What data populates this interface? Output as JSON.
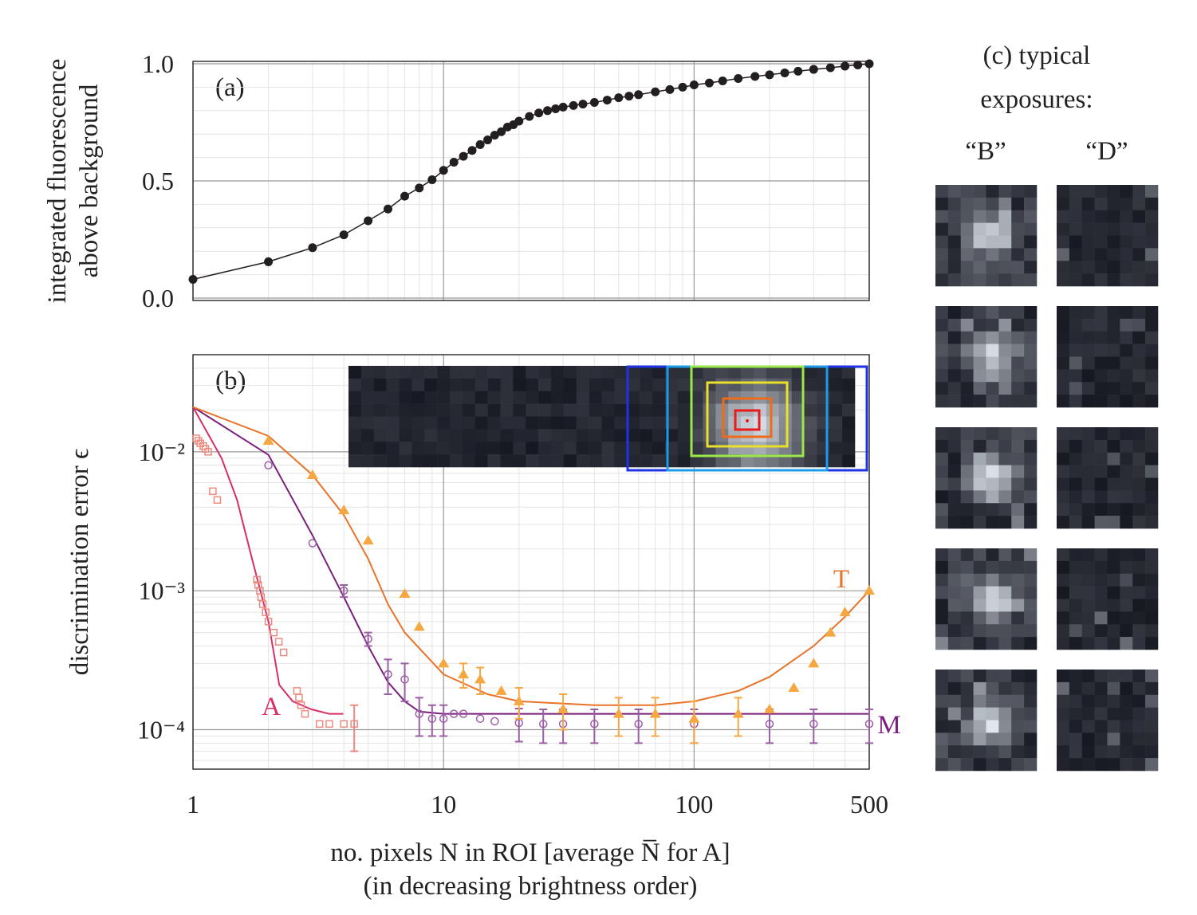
{
  "chart_data": [
    {
      "type": "line",
      "panel_label": "(a)",
      "ylabel": [
        "integrated fluorescence",
        "above background"
      ],
      "x": [
        1,
        2,
        3,
        4,
        5,
        6,
        7,
        8,
        9,
        10,
        11,
        12,
        13,
        14,
        15,
        16,
        17,
        18,
        19,
        20,
        22,
        24,
        26,
        28,
        30,
        33,
        36,
        40,
        45,
        50,
        55,
        60,
        70,
        80,
        90,
        100,
        115,
        130,
        150,
        175,
        200,
        230,
        260,
        300,
        350,
        400,
        450,
        500
      ],
      "values": [
        0.08,
        0.155,
        0.215,
        0.27,
        0.33,
        0.38,
        0.435,
        0.47,
        0.505,
        0.545,
        0.58,
        0.605,
        0.63,
        0.655,
        0.675,
        0.695,
        0.71,
        0.73,
        0.74,
        0.755,
        0.775,
        0.79,
        0.8,
        0.808,
        0.815,
        0.822,
        0.828,
        0.835,
        0.845,
        0.855,
        0.862,
        0.868,
        0.88,
        0.89,
        0.9,
        0.91,
        0.918,
        0.927,
        0.937,
        0.946,
        0.953,
        0.961,
        0.968,
        0.976,
        0.983,
        0.99,
        0.995,
        1.0
      ],
      "color": "#231f20",
      "xscale": "log",
      "xlim": [
        1,
        500
      ],
      "xticks": [
        1,
        10,
        100,
        500
      ],
      "ylim": [
        0,
        1
      ],
      "yticks": [
        {
          "value": 0,
          "label": "0.0"
        },
        {
          "value": 0.5,
          "label": "0.5"
        },
        {
          "value": 1,
          "label": "1.0"
        }
      ],
      "grid": true
    },
    {
      "type": "line",
      "panel_label": "(b)",
      "ylabel": "discrimination error ϵ",
      "xlabel": [
        "no. pixels N in ROI [average N̅ for A]",
        "(in decreasing brightness order)"
      ],
      "xscale": "log",
      "yscale": "log",
      "xlim": [
        1,
        500
      ],
      "xticks": [
        1,
        10,
        100,
        500
      ],
      "ylim": [
        5.2e-05,
        0.05
      ],
      "yticks": [
        {
          "value": 0.0001,
          "label": "10⁻⁴"
        },
        {
          "value": 0.001,
          "label": "10⁻³"
        },
        {
          "value": 0.01,
          "label": "10⁻²"
        }
      ],
      "grid": true,
      "series": [
        {
          "name": "A",
          "color": "#d62f6a",
          "marker_color": "#ec8a80",
          "marker": "square",
          "line_x": [
            1,
            1.3,
            1.5,
            1.72,
            2.0,
            2.21,
            2.5,
            2.97,
            3.5,
            3.98
          ],
          "line_values": [
            0.021,
            0.009,
            0.0045,
            0.0017,
            0.0006,
            0.00021,
            0.00016,
            0.00014,
            0.00013,
            0.00013
          ],
          "x": [
            1.03,
            1.05,
            1.07,
            1.1,
            1.12,
            1.15,
            1.2,
            1.25,
            1.8,
            1.82,
            1.85,
            1.87,
            1.9,
            1.95,
            2.0,
            2.1,
            2.2,
            2.3,
            2.6,
            2.65,
            2.7,
            2.8,
            3.2,
            3.5,
            4.0,
            4.4
          ],
          "values": [
            0.0125,
            0.012,
            0.0115,
            0.011,
            0.0105,
            0.01,
            0.0052,
            0.0045,
            0.0012,
            0.0011,
            0.001,
            0.0009,
            0.0008,
            0.0007,
            0.0006,
            0.0005,
            0.00043,
            0.00036,
            0.00019,
            0.00017,
            0.00015,
            0.00013,
            0.00011,
            0.00011,
            0.00011,
            0.00011
          ],
          "errors": [
            null,
            null,
            null,
            null,
            null,
            null,
            null,
            null,
            null,
            null,
            null,
            null,
            null,
            null,
            null,
            null,
            null,
            null,
            null,
            null,
            null,
            null,
            null,
            null,
            null,
            4e-05
          ]
        },
        {
          "name": "M",
          "color": "#7b1f7f",
          "marker_color": "#9b5fa5",
          "marker": "circle",
          "line_x": [
            1,
            2,
            3,
            4,
            5,
            6,
            7,
            8,
            10,
            20,
            100,
            500
          ],
          "line_values": [
            0.021,
            0.0095,
            0.0025,
            0.0009,
            0.0004,
            0.00022,
            0.00016,
            0.000135,
            0.00013,
            0.00013,
            0.00013,
            0.00013
          ],
          "x": [
            2,
            3,
            4,
            5,
            6,
            7,
            8,
            9,
            10,
            11,
            12,
            14,
            16,
            20,
            25,
            30,
            40,
            60,
            100,
            200,
            300,
            500
          ],
          "values": [
            0.008,
            0.0022,
            0.001,
            0.00045,
            0.00025,
            0.00023,
            0.00013,
            0.00012,
            0.00012,
            0.00013,
            0.00013,
            0.00012,
            0.000115,
            0.000112,
            0.00011,
            0.00011,
            0.00011,
            0.00011,
            0.00011,
            0.00011,
            0.00011,
            0.00011
          ],
          "errors": [
            null,
            null,
            0.0001,
            5e-05,
            7e-05,
            7e-05,
            4e-05,
            3e-05,
            3e-05,
            null,
            null,
            null,
            null,
            3e-05,
            3e-05,
            3e-05,
            3e-05,
            3e-05,
            3e-05,
            3e-05,
            3e-05,
            3e-05
          ]
        },
        {
          "name": "T",
          "color": "#e8732a",
          "marker_color": "#f5a742",
          "marker": "triangle",
          "line_x": [
            1,
            2,
            3,
            4,
            5,
            6,
            7,
            10,
            15,
            20,
            40,
            70,
            100,
            150,
            200,
            300,
            400,
            500
          ],
          "line_values": [
            0.021,
            0.013,
            0.0068,
            0.0035,
            0.0017,
            0.0008,
            0.0005,
            0.00025,
            0.00018,
            0.00016,
            0.00015,
            0.00015,
            0.00016,
            0.00019,
            0.00024,
            0.0004,
            0.00065,
            0.001
          ],
          "x": [
            2,
            3,
            4,
            5,
            7,
            8,
            10,
            12,
            14,
            17,
            20,
            30,
            50,
            70,
            100,
            150,
            200,
            250,
            300,
            350,
            400,
            500
          ],
          "values": [
            0.012,
            0.0068,
            0.0038,
            0.0023,
            0.00095,
            0.00055,
            0.0003,
            0.00025,
            0.00023,
            0.00019,
            0.00016,
            0.00014,
            0.00013,
            0.00013,
            0.00012,
            0.00013,
            0.00014,
            0.0002,
            0.0003,
            0.0005,
            0.0007,
            0.001
          ],
          "errors": [
            null,
            null,
            null,
            null,
            null,
            null,
            null,
            5e-05,
            5e-05,
            null,
            4e-05,
            4e-05,
            4e-05,
            4e-05,
            4e-05,
            4e-05,
            null,
            null,
            null,
            null,
            null,
            null
          ]
        }
      ]
    }
  ],
  "panel_c": {
    "title_lines": [
      "(c) typical",
      "exposures:"
    ],
    "column_labels": [
      "“B”",
      "“D”"
    ]
  }
}
